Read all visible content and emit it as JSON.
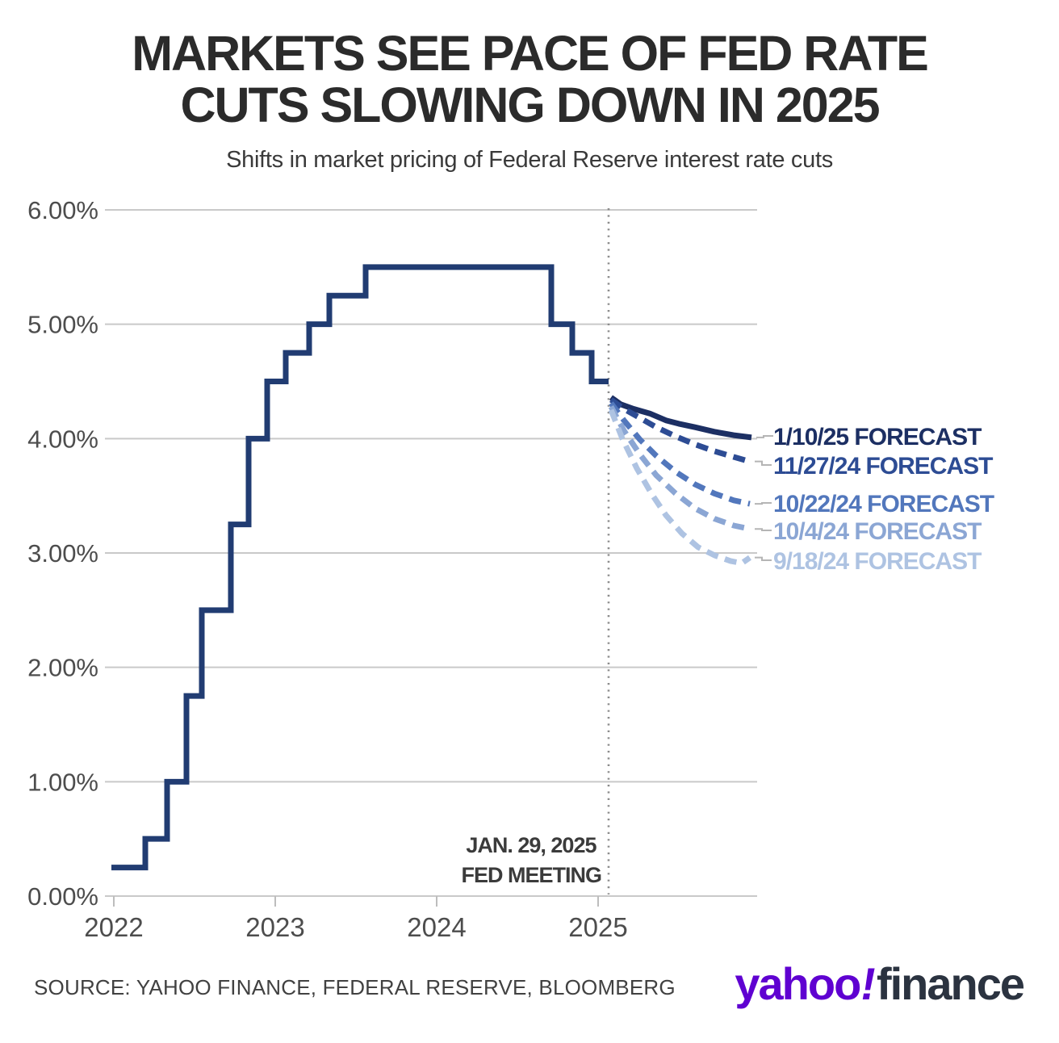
{
  "header": {
    "title_line1": "MARKETS SEE PACE OF FED RATE",
    "title_line2": "CUTS SLOWING DOWN IN 2025",
    "subtitle": "Shifts in market pricing of Federal Reserve interest rate cuts"
  },
  "annotation": {
    "line1": "JAN. 29, 2025",
    "line2": "FED MEETING"
  },
  "footer": {
    "source": "SOURCE: YAHOO FINANCE, FEDERAL RESERVE, BLOOMBERG",
    "logo_yahoo": "yahoo",
    "logo_bang": "!",
    "logo_finance": "finance",
    "logo_yahoo_color": "#5f01d1",
    "logo_finance_color": "#2b3340"
  },
  "chart_data": {
    "type": "line",
    "title": "MARKETS SEE PACE OF FED RATE CUTS SLOWING DOWN IN 2025",
    "subtitle": "Shifts in market pricing of Federal Reserve interest rate cuts",
    "xlabel": "",
    "ylabel": "",
    "ylim": [
      0,
      6
    ],
    "xlim": [
      2021.95,
      2026.0
    ],
    "grid": true,
    "legend_position": "right-inline",
    "grid_color": "#c9c9c9",
    "event_line": {
      "year": 2025.065,
      "color": "#8c8c8c",
      "style": "dotted"
    },
    "y_ticks": [
      {
        "label": "6.00%",
        "value": 6
      },
      {
        "label": "5.00%",
        "value": 5
      },
      {
        "label": "4.00%",
        "value": 4
      },
      {
        "label": "3.00%",
        "value": 3
      },
      {
        "label": "2.00%",
        "value": 2
      },
      {
        "label": "1.00%",
        "value": 1
      },
      {
        "label": "0.00%",
        "value": 0
      }
    ],
    "x_ticks": [
      {
        "label": "2022",
        "value": 2022
      },
      {
        "label": "2023",
        "value": 2023
      },
      {
        "label": "2024",
        "value": 2024
      },
      {
        "label": "2025",
        "value": 2025
      }
    ],
    "policy_rate": {
      "name": "Federal funds target rate (upper bound)",
      "color": "#213c72",
      "end_year": 2025.065,
      "steps": [
        [
          2021.985,
          0.25
        ],
        [
          2022.195,
          0.5
        ],
        [
          2022.33,
          1.0
        ],
        [
          2022.45,
          1.75
        ],
        [
          2022.545,
          2.5
        ],
        [
          2022.725,
          3.25
        ],
        [
          2022.835,
          4.0
        ],
        [
          2022.95,
          4.5
        ],
        [
          2023.065,
          4.75
        ],
        [
          2023.21,
          5.0
        ],
        [
          2023.335,
          5.25
        ],
        [
          2023.56,
          5.5
        ],
        [
          2024.71,
          5.0
        ],
        [
          2024.84,
          4.75
        ],
        [
          2024.96,
          4.5
        ]
      ]
    },
    "forecasts": [
      {
        "id": "forecast-2025-01-10",
        "label": "1/10/25 FORECAST",
        "color": "#1c2f63",
        "dashed": false,
        "points": [
          [
            2025.08,
            4.36
          ],
          [
            2025.14,
            4.3
          ],
          [
            2025.22,
            4.26
          ],
          [
            2025.32,
            4.22
          ],
          [
            2025.42,
            4.16
          ],
          [
            2025.5,
            4.13
          ],
          [
            2025.6,
            4.1
          ],
          [
            2025.72,
            4.06
          ],
          [
            2025.84,
            4.03
          ],
          [
            2025.95,
            4.01
          ]
        ]
      },
      {
        "id": "forecast-2024-11-27",
        "label": "11/27/24 FORECAST",
        "color": "#2d4c94",
        "dashed": true,
        "points": [
          [
            2025.08,
            4.34
          ],
          [
            2025.16,
            4.26
          ],
          [
            2025.26,
            4.18
          ],
          [
            2025.36,
            4.1
          ],
          [
            2025.48,
            4.02
          ],
          [
            2025.6,
            3.95
          ],
          [
            2025.72,
            3.89
          ],
          [
            2025.84,
            3.84
          ],
          [
            2025.94,
            3.8
          ]
        ]
      },
      {
        "id": "forecast-2024-10-22",
        "label": "10/22/24 FORECAST",
        "color": "#5277bc",
        "dashed": true,
        "points": [
          [
            2025.08,
            4.31
          ],
          [
            2025.16,
            4.16
          ],
          [
            2025.26,
            3.99
          ],
          [
            2025.36,
            3.85
          ],
          [
            2025.48,
            3.71
          ],
          [
            2025.6,
            3.6
          ],
          [
            2025.72,
            3.52
          ],
          [
            2025.84,
            3.46
          ],
          [
            2025.94,
            3.43
          ]
        ]
      },
      {
        "id": "forecast-2024-10-04",
        "label": "10/4/24 FORECAST",
        "color": "#8ba6d4",
        "dashed": true,
        "points": [
          [
            2025.08,
            4.28
          ],
          [
            2025.16,
            4.07
          ],
          [
            2025.26,
            3.86
          ],
          [
            2025.36,
            3.68
          ],
          [
            2025.48,
            3.52
          ],
          [
            2025.6,
            3.39
          ],
          [
            2025.72,
            3.3
          ],
          [
            2025.84,
            3.24
          ],
          [
            2025.94,
            3.21
          ]
        ]
      },
      {
        "id": "forecast-2024-09-18",
        "label": "9/18/24 FORECAST",
        "color": "#aec3e2",
        "dashed": true,
        "points": [
          [
            2025.08,
            4.25
          ],
          [
            2025.15,
            4.0
          ],
          [
            2025.24,
            3.74
          ],
          [
            2025.33,
            3.52
          ],
          [
            2025.42,
            3.33
          ],
          [
            2025.52,
            3.17
          ],
          [
            2025.62,
            3.05
          ],
          [
            2025.72,
            2.98
          ],
          [
            2025.82,
            2.93
          ],
          [
            2025.89,
            2.91
          ],
          [
            2025.94,
            2.96
          ]
        ]
      }
    ]
  }
}
